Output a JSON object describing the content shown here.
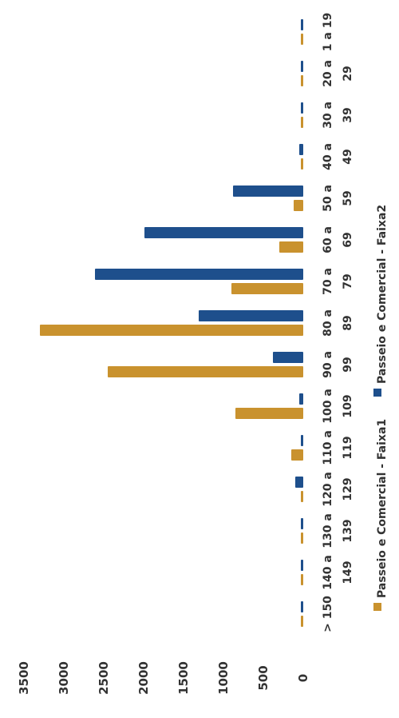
{
  "chart_data": {
    "type": "bar",
    "orientation": "rotated-90",
    "categories": [
      [
        "1 a 19",
        ""
      ],
      [
        "20 a",
        "29"
      ],
      [
        "30 a",
        "39"
      ],
      [
        "40 a",
        "49"
      ],
      [
        "50 a",
        "59"
      ],
      [
        "60 a",
        "69"
      ],
      [
        "70 a",
        "79"
      ],
      [
        "80 a",
        "89"
      ],
      [
        "90 a",
        "99"
      ],
      [
        "100 a",
        "109"
      ],
      [
        "110 a",
        "119"
      ],
      [
        "120 a",
        "129"
      ],
      [
        "130 a",
        "139"
      ],
      [
        "140 a",
        "149"
      ],
      [
        "> 150",
        ""
      ]
    ],
    "series": [
      {
        "name": "Passeio e Comercial - Faixa1",
        "color": "#C9922E",
        "values": [
          0,
          0,
          0,
          0,
          120,
          300,
          900,
          3300,
          2450,
          850,
          150,
          0,
          0,
          0,
          0
        ]
      },
      {
        "name": "Passeio e Comercial - Faixa2",
        "color": "#1E4F8C",
        "values": [
          0,
          0,
          0,
          50,
          880,
          1990,
          2610,
          1310,
          380,
          50,
          20,
          100,
          0,
          0,
          0
        ]
      }
    ],
    "ylim": [
      0,
      3500
    ],
    "yticks": [
      "0",
      "500",
      "1000",
      "1500",
      "2000",
      "2500",
      "3000",
      "3500"
    ],
    "legend_position": "bottom",
    "grid": false
  }
}
